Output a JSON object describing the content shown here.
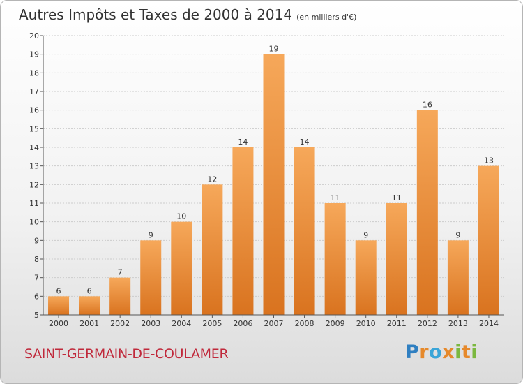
{
  "title": "Autres Impôts et Taxes de 2000 à 2014",
  "unit_label": "(en milliers d'€)",
  "location": "SAINT-GERMAIN-DE-COULAMER",
  "logo": {
    "text": "Proxiti",
    "letters": [
      {
        "char": "P",
        "color": "#2f7fc1"
      },
      {
        "char": "r",
        "color": "#e6892b"
      },
      {
        "char": "o",
        "color": "#3aa5d8"
      },
      {
        "char": "x",
        "color": "#e6892b"
      },
      {
        "char": "i",
        "color": "#7bb83f"
      },
      {
        "char": "t",
        "color": "#e6892b"
      },
      {
        "char": "i",
        "color": "#7bb83f"
      }
    ]
  },
  "colors": {
    "bar_light": "#f6a85a",
    "bar_dark": "#d9731f",
    "grid": "#cccccc",
    "axis": "#555555"
  },
  "chart_data": {
    "type": "bar",
    "categories": [
      "2000",
      "2001",
      "2002",
      "2003",
      "2004",
      "2005",
      "2006",
      "2007",
      "2008",
      "2009",
      "2010",
      "2011",
      "2012",
      "2013",
      "2014"
    ],
    "values": [
      6,
      6,
      7,
      9,
      10,
      12,
      14,
      19,
      14,
      11,
      9,
      11,
      16,
      9,
      13
    ],
    "ylim": [
      5,
      20
    ],
    "yticks": [
      5,
      6,
      7,
      8,
      9,
      10,
      11,
      12,
      13,
      14,
      15,
      16,
      17,
      18,
      19,
      20
    ],
    "grid": true,
    "data_labels": true
  }
}
